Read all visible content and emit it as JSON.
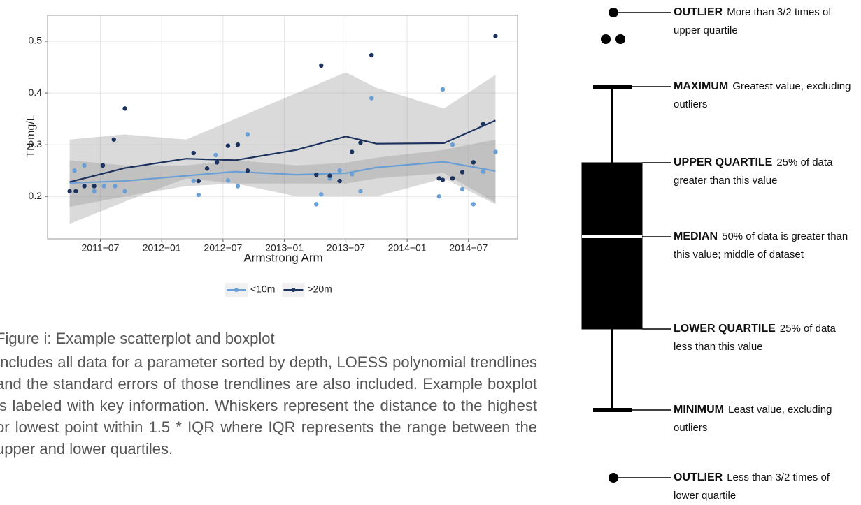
{
  "chart_data": {
    "type": "scatter",
    "x_label": "Armstrong Arm",
    "y_label": "TN  mg/L",
    "xlim": [
      2011.07,
      2014.9
    ],
    "ylim": [
      0.118,
      0.55
    ],
    "xticks": [
      {
        "value": 2011.5,
        "label": "2011−07"
      },
      {
        "value": 2012.0,
        "label": "2012−01"
      },
      {
        "value": 2012.5,
        "label": "2012−07"
      },
      {
        "value": 2013.0,
        "label": "2013−01"
      },
      {
        "value": 2013.5,
        "label": "2013−07"
      },
      {
        "value": 2014.0,
        "label": "2014−01"
      },
      {
        "value": 2014.5,
        "label": "2014−07"
      }
    ],
    "yticks": [
      0.2,
      0.3,
      0.4,
      0.5
    ],
    "grid": true,
    "loess_x": [
      2011.25,
      2011.7,
      2012.2,
      2012.6,
      2013.1,
      2013.5,
      2013.75,
      2014.3,
      2014.72
    ],
    "series": [
      {
        "name": "<10m",
        "color": "#6a9fd6",
        "x": [
          2011.29,
          2011.37,
          2011.45,
          2011.53,
          2011.62,
          2011.7,
          2012.26,
          2012.3,
          2012.44,
          2012.54,
          2012.62,
          2012.7,
          2013.26,
          2013.3,
          2013.37,
          2013.45,
          2013.55,
          2013.62,
          2013.71,
          2014.26,
          2014.29,
          2014.37,
          2014.45,
          2014.54,
          2014.62,
          2014.72
        ],
        "values": [
          0.25,
          0.26,
          0.21,
          0.22,
          0.22,
          0.21,
          0.23,
          0.203,
          0.28,
          0.231,
          0.22,
          0.32,
          0.185,
          0.204,
          0.235,
          0.25,
          0.243,
          0.21,
          0.39,
          0.2,
          0.407,
          0.3,
          0.214,
          0.185,
          0.248,
          0.286
        ],
        "loess": [
          0.226,
          0.23,
          0.24,
          0.248,
          0.242,
          0.245,
          0.256,
          0.267,
          0.249
        ],
        "loess_lower": [
          0.18,
          0.2,
          0.22,
          0.225,
          0.225,
          0.225,
          0.235,
          0.245,
          0.188
        ],
        "loess_upper": [
          0.27,
          0.26,
          0.26,
          0.27,
          0.26,
          0.265,
          0.275,
          0.29,
          0.31
        ]
      },
      {
        "name": ">20m",
        "color": "#1b325e",
        "x": [
          2011.25,
          2011.3,
          2011.37,
          2011.45,
          2011.52,
          2011.61,
          2011.7,
          2012.26,
          2012.3,
          2012.37,
          2012.45,
          2012.54,
          2012.62,
          2012.7,
          2013.26,
          2013.3,
          2013.37,
          2013.45,
          2013.55,
          2013.62,
          2013.71,
          2014.26,
          2014.29,
          2014.37,
          2014.45,
          2014.54,
          2014.62,
          2014.72
        ],
        "values": [
          0.21,
          0.21,
          0.22,
          0.22,
          0.26,
          0.31,
          0.37,
          0.284,
          0.23,
          0.254,
          0.266,
          0.298,
          0.3,
          0.25,
          0.242,
          0.453,
          0.24,
          0.23,
          0.286,
          0.304,
          0.473,
          0.235,
          0.232,
          0.235,
          0.247,
          0.266,
          0.34,
          0.51
        ],
        "loess": [
          0.228,
          0.255,
          0.273,
          0.27,
          0.29,
          0.316,
          0.302,
          0.303,
          0.347
        ],
        "loess_lower": [
          0.147,
          0.19,
          0.235,
          0.225,
          0.2,
          0.2,
          0.2,
          0.235,
          0.185
        ],
        "loess_upper": [
          0.31,
          0.32,
          0.31,
          0.35,
          0.4,
          0.44,
          0.41,
          0.37,
          0.435
        ]
      }
    ]
  },
  "caption": {
    "title": "Figure i: Example scatterplot and boxplot",
    "body": "Includes all data for a parameter sorted by depth, LOESS polynomial trendlines and the standard errors of those trendlines are also included. Example boxplot is labeled with key information. Whiskers represent the distance to the highest or lowest point within 1.5 * IQR where IQR represents the range between the upper and lower quartiles."
  },
  "boxplot": {
    "labels": [
      {
        "term": "OUTLIER",
        "description": "More than 3/2 times of upper quartile"
      },
      {
        "term": "MAXIMUM",
        "description": "Greatest value, excluding outliers"
      },
      {
        "term": "UPPER QUARTILE",
        "description": "25% of data greater than this value"
      },
      {
        "term": "MEDIAN",
        "description": "50% of data is greater than this value; middle of dataset"
      },
      {
        "term": "LOWER QUARTILE",
        "description": "25% of data less than this value"
      },
      {
        "term": "MINIMUM",
        "description": "Least value, excluding outliers"
      },
      {
        "term": "OUTLIER",
        "description": "Less than 3/2 times of lower quartile"
      }
    ]
  }
}
